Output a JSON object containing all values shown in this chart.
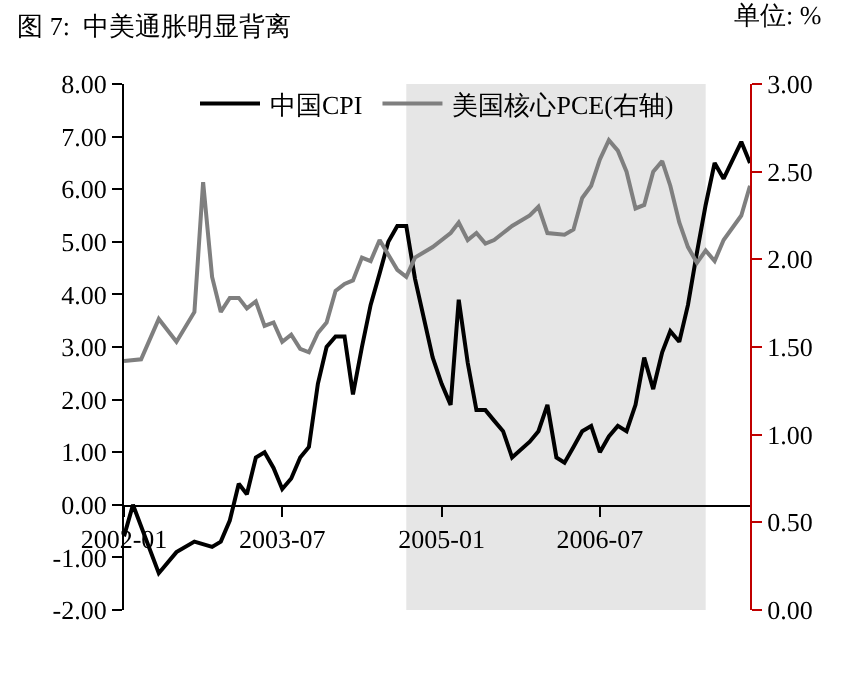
{
  "chart_data": {
    "type": "line",
    "title": "图 7:  中美通胀明显背离",
    "annotations": [
      "单位: %"
    ],
    "xlim": [
      "2002-01",
      "2007-12"
    ],
    "xticks": [
      "2002-01",
      "2003-07",
      "2005-01",
      "2006-07"
    ],
    "ylim": [
      -2,
      8
    ],
    "yticks": [
      {
        "value": -2,
        "label": "-2.00"
      },
      {
        "value": -1,
        "label": "-1.00"
      },
      {
        "value": 0,
        "label": "0.00"
      },
      {
        "value": 1,
        "label": "1.00"
      },
      {
        "value": 2,
        "label": "2.00"
      },
      {
        "value": 3,
        "label": "3.00"
      },
      {
        "value": 4,
        "label": "4.00"
      },
      {
        "value": 5,
        "label": "5.00"
      },
      {
        "value": 6,
        "label": "6.00"
      },
      {
        "value": 7,
        "label": "7.00"
      },
      {
        "value": 8,
        "label": "8.00"
      }
    ],
    "y2lim": [
      0,
      3
    ],
    "y2ticks": [
      {
        "value": 0,
        "label": "0.00"
      },
      {
        "value": 0.5,
        "label": "0.50"
      },
      {
        "value": 1,
        "label": "1.00"
      },
      {
        "value": 1.5,
        "label": "1.50"
      },
      {
        "value": 2,
        "label": "2.00"
      },
      {
        "value": 2.5,
        "label": "2.50"
      },
      {
        "value": 3,
        "label": "3.00"
      }
    ],
    "grid": false,
    "legend": "top",
    "marker": "none",
    "line_style": "solid",
    "bands": [
      {
        "axis": "x",
        "from": "2004-09",
        "to": "2007-07",
        "color": "#e6e6e6"
      }
    ],
    "series": [
      {
        "name": "中国CPI",
        "color": "#000000",
        "x": [
          "2002-01",
          "2002-02",
          "2002-05",
          "2002-07",
          "2002-09",
          "2002-11",
          "2002-12",
          "2003-01",
          "2003-02",
          "2003-03",
          "2003-04",
          "2003-05",
          "2003-06",
          "2003-07",
          "2003-08",
          "2003-09",
          "2003-10",
          "2003-11",
          "2003-12",
          "2004-01",
          "2004-02",
          "2004-03",
          "2004-04",
          "2004-05",
          "2004-06",
          "2004-07",
          "2004-08",
          "2004-09",
          "2004-10",
          "2004-12",
          "2005-01",
          "2005-02",
          "2005-03",
          "2005-04",
          "2005-05",
          "2005-06",
          "2005-07",
          "2005-08",
          "2005-09",
          "2005-11",
          "2005-12",
          "2006-01",
          "2006-02",
          "2006-03",
          "2006-04",
          "2006-05",
          "2006-06",
          "2006-07",
          "2006-08",
          "2006-09",
          "2006-10",
          "2006-11",
          "2006-12",
          "2007-01",
          "2007-02",
          "2007-03",
          "2007-04",
          "2007-05",
          "2007-06",
          "2007-07",
          "2007-08",
          "2007-09",
          "2007-11",
          "2007-12"
        ],
        "values": [
          -0.6,
          0.0,
          -1.3,
          -0.9,
          -0.7,
          -0.8,
          -0.7,
          -0.3,
          0.4,
          0.2,
          0.9,
          1.0,
          0.7,
          0.3,
          0.5,
          0.9,
          1.1,
          2.3,
          3.0,
          3.2,
          3.2,
          2.1,
          3.0,
          3.8,
          4.4,
          5.0,
          5.3,
          5.3,
          4.3,
          2.8,
          2.3,
          1.9,
          3.9,
          2.7,
          1.8,
          1.8,
          1.6,
          1.4,
          0.9,
          1.2,
          1.4,
          1.9,
          0.9,
          0.8,
          1.1,
          1.4,
          1.5,
          1.0,
          1.3,
          1.5,
          1.4,
          1.9,
          2.8,
          2.2,
          2.9,
          3.3,
          3.1,
          3.8,
          4.8,
          5.7,
          6.5,
          6.2,
          6.9,
          6.5
        ]
      },
      {
        "name": "美国核心PCE(右轴)",
        "color": "#7f7f7f",
        "axis": "y2",
        "x": [
          "2002-01",
          "2002-03",
          "2002-05",
          "2002-07",
          "2002-09",
          "2002-10",
          "2002-11",
          "2002-12",
          "2003-01",
          "2003-02",
          "2003-03",
          "2003-04",
          "2003-05",
          "2003-06",
          "2003-07",
          "2003-08",
          "2003-09",
          "2003-10",
          "2003-11",
          "2003-12",
          "2004-01",
          "2004-02",
          "2004-03",
          "2004-04",
          "2004-05",
          "2004-06",
          "2004-08",
          "2004-09",
          "2004-10",
          "2004-12",
          "2005-02",
          "2005-03",
          "2005-04",
          "2005-05",
          "2005-06",
          "2005-07",
          "2005-08",
          "2005-09",
          "2005-11",
          "2005-12",
          "2006-01",
          "2006-03",
          "2006-04",
          "2006-05",
          "2006-06",
          "2006-07",
          "2006-08",
          "2006-09",
          "2006-10",
          "2006-11",
          "2006-12",
          "2007-01",
          "2007-02",
          "2007-03",
          "2007-04",
          "2007-05",
          "2007-06",
          "2007-07",
          "2007-08",
          "2007-09",
          "2007-11",
          "2007-12"
        ],
        "values": [
          1.42,
          1.43,
          1.66,
          1.53,
          1.7,
          2.44,
          1.9,
          1.7,
          1.78,
          1.78,
          1.72,
          1.76,
          1.62,
          1.64,
          1.53,
          1.57,
          1.49,
          1.47,
          1.58,
          1.64,
          1.82,
          1.86,
          1.88,
          2.01,
          1.99,
          2.11,
          1.94,
          1.9,
          2.01,
          2.07,
          2.15,
          2.21,
          2.11,
          2.15,
          2.09,
          2.11,
          2.15,
          2.19,
          2.25,
          2.3,
          2.15,
          2.14,
          2.17,
          2.35,
          2.42,
          2.57,
          2.68,
          2.62,
          2.5,
          2.29,
          2.31,
          2.5,
          2.56,
          2.42,
          2.21,
          2.07,
          1.98,
          2.05,
          1.99,
          2.11,
          2.25,
          2.42
        ]
      }
    ]
  }
}
